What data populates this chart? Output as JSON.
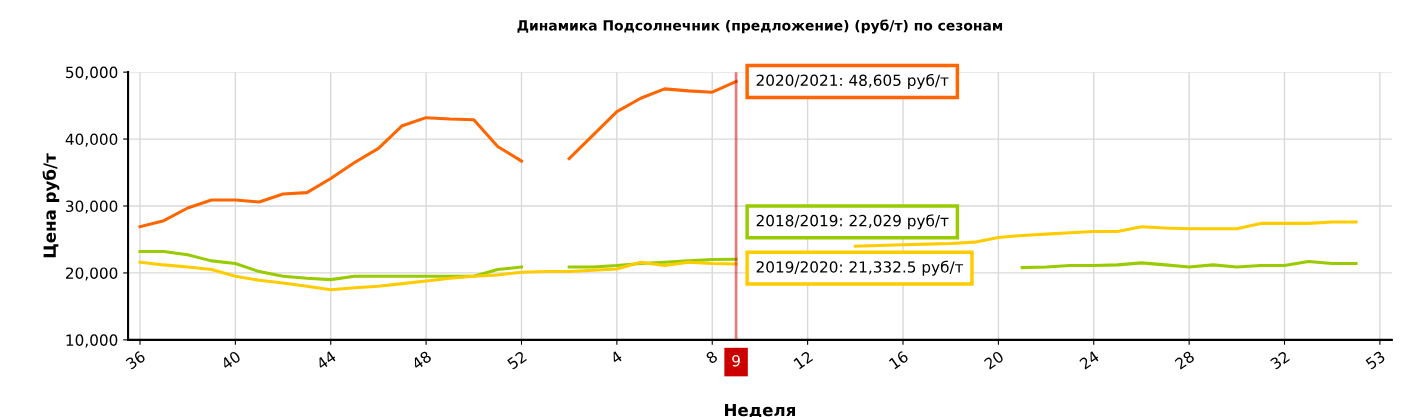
{
  "chart_data": {
    "type": "line",
    "title": "Динамика Подсолнечник (предложение) (руб/т) по сезонам",
    "xlabel": "Неделя",
    "ylabel": "Цена руб/т",
    "categories": [
      "36",
      null,
      null,
      null,
      "40",
      null,
      null,
      null,
      "44",
      null,
      null,
      null,
      "48",
      null,
      null,
      null,
      "52",
      null,
      null,
      null,
      "4",
      null,
      null,
      null,
      "8",
      "9",
      null,
      null,
      "12",
      null,
      null,
      null,
      "16",
      null,
      null,
      null,
      "20",
      null,
      null,
      null,
      "24",
      null,
      null,
      null,
      "28",
      null,
      null,
      null,
      "32",
      null,
      null,
      null,
      "53"
    ],
    "ylim": [
      10000,
      50000
    ],
    "yticks": [
      {
        "value": 10000,
        "label": "10,000"
      },
      {
        "value": 20000,
        "label": "20,000"
      },
      {
        "value": 30000,
        "label": "30,000"
      },
      {
        "value": 40000,
        "label": "40,000"
      },
      {
        "value": 50000,
        "label": "50,000"
      }
    ],
    "grid": true,
    "legend": false,
    "line_style": "solid",
    "marker": "none",
    "series": [
      {
        "color": "#99cc00",
        "values": [
          23200,
          23200,
          22700,
          21800,
          21400,
          20200,
          19500,
          19200,
          19000,
          19500,
          19500,
          19500,
          19500,
          19500,
          19500,
          20500,
          20900,
          null,
          20900,
          20900,
          21100,
          21400,
          21600,
          21800,
          22000,
          22029,
          null,
          null,
          null,
          null,
          null,
          null,
          null,
          null,
          null,
          null,
          null,
          20800,
          20900,
          21100,
          21100,
          21200,
          21500,
          21200,
          20900,
          21200,
          20900,
          21100,
          21100,
          21700,
          21400,
          21400,
          null
        ]
      },
      {
        "color": "#ffcc00",
        "values": [
          21600,
          21200,
          20900,
          20500,
          19500,
          18900,
          18500,
          18000,
          17500,
          17800,
          18000,
          18400,
          18800,
          19200,
          19500,
          19700,
          20100,
          20200,
          20200,
          20400,
          20600,
          21600,
          21100,
          21600,
          21400,
          21332.5,
          null,
          null,
          null,
          null,
          24000,
          24100,
          24200,
          24300,
          24400,
          24600,
          25300,
          25600,
          25800,
          26000,
          26200,
          26200,
          26900,
          26700,
          26600,
          26600,
          26600,
          27400,
          27400,
          27400,
          27600,
          27600,
          null
        ]
      },
      {
        "color": "#ff6600",
        "values": [
          26900,
          27800,
          29700,
          30900,
          30900,
          30600,
          31800,
          32000,
          34100,
          36500,
          38600,
          42000,
          43200,
          43000,
          42900,
          38900,
          36700,
          null,
          37100,
          40600,
          44100,
          46100,
          47500,
          47200,
          47000,
          48605,
          null,
          null,
          null,
          null,
          null,
          null,
          null,
          null,
          null,
          null,
          null,
          null,
          null,
          null,
          null,
          null,
          null,
          null,
          null,
          null,
          null,
          null,
          null,
          null,
          null,
          null,
          null
        ]
      }
    ],
    "ref_lines": [
      {
        "axis": "x",
        "value": "9",
        "color": "#cc0000"
      }
    ],
    "annotations": [
      {
        "text": "2020/2021: 48,605 руб/т",
        "x": "9",
        "y": 48605
      },
      {
        "text": "2018/2019: 22,029 руб/т",
        "x": "9",
        "y": 22029
      },
      {
        "text": "2019/2020: 21,332.5 руб/т",
        "x": "9",
        "y": 21332.5
      }
    ]
  }
}
